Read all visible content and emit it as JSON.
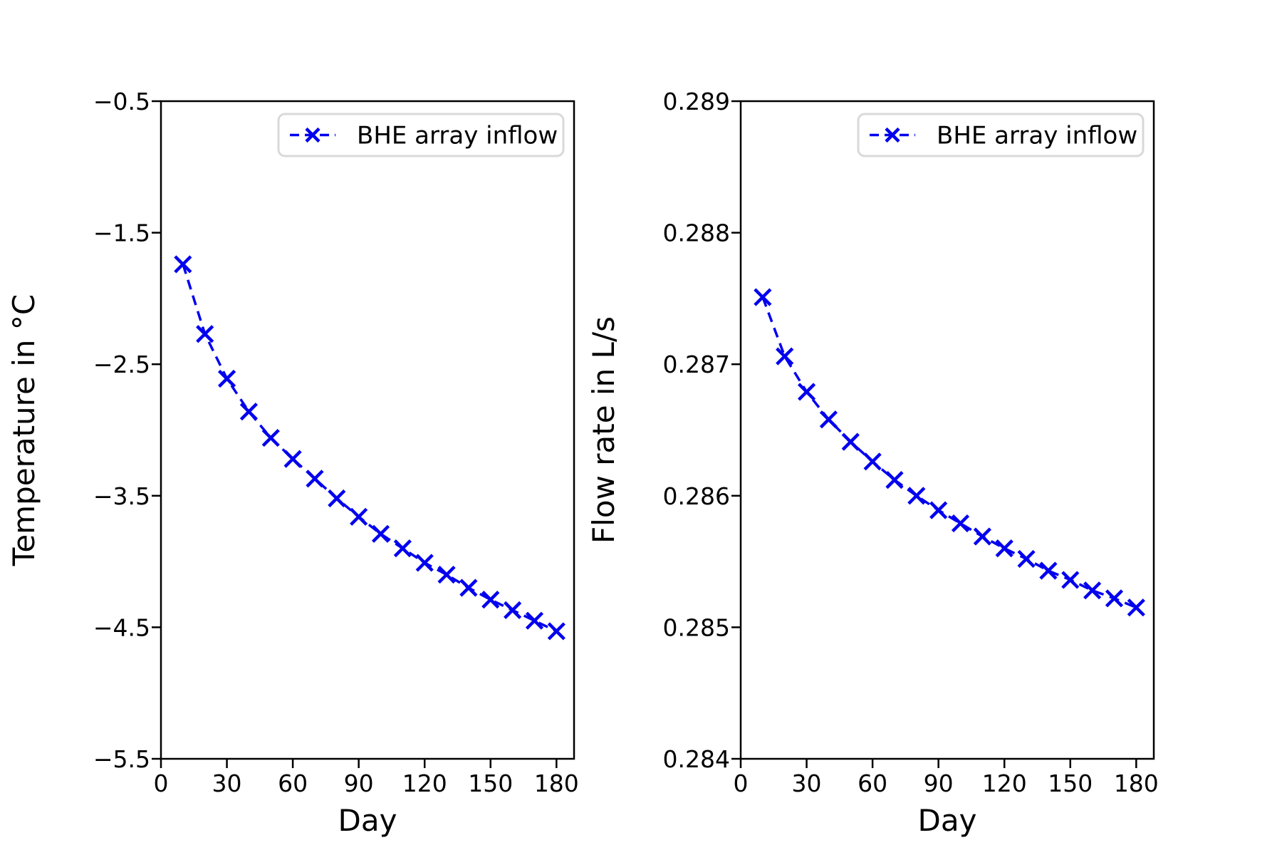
{
  "figure": {
    "background": "#ffffff",
    "accent_blue": "#0000ee",
    "legend_border": "#d9d9d9"
  },
  "chart_data": [
    {
      "type": "line",
      "title": "",
      "xlabel": "Day",
      "ylabel": "Temperature in °C",
      "grid": false,
      "legend": {
        "label": "BHE array inflow",
        "position": "upper right"
      },
      "xlim": [
        0,
        188
      ],
      "ylim": [
        -5.5,
        -0.5
      ],
      "xticks": {
        "values": [
          0,
          30,
          60,
          90,
          120,
          150,
          180
        ],
        "labels": [
          "0",
          "30",
          "60",
          "90",
          "120",
          "150",
          "180"
        ]
      },
      "yticks": {
        "values": [
          -0.5,
          -1.5,
          -2.5,
          -3.5,
          -4.5,
          -5.5
        ],
        "labels": [
          "−0.5",
          "−1.5",
          "−2.5",
          "−3.5",
          "−4.5",
          "−5.5"
        ]
      },
      "series": [
        {
          "name": "BHE array inflow",
          "color": "#0000ee",
          "linestyle": "dashed",
          "marker": "x",
          "x": [
            10,
            20,
            30,
            40,
            50,
            60,
            70,
            80,
            90,
            100,
            110,
            120,
            130,
            140,
            150,
            160,
            170,
            180
          ],
          "y": [
            -1.74,
            -2.27,
            -2.61,
            -2.86,
            -3.06,
            -3.22,
            -3.37,
            -3.52,
            -3.66,
            -3.79,
            -3.9,
            -4.01,
            -4.1,
            -4.2,
            -4.29,
            -4.37,
            -4.45,
            -4.53
          ]
        }
      ]
    },
    {
      "type": "line",
      "title": "",
      "xlabel": "Day",
      "ylabel": "Flow rate in L/s",
      "grid": false,
      "legend": {
        "label": "BHE array inflow",
        "position": "upper right"
      },
      "xlim": [
        0,
        188
      ],
      "ylim": [
        0.284,
        0.289
      ],
      "xticks": {
        "values": [
          0,
          30,
          60,
          90,
          120,
          150,
          180
        ],
        "labels": [
          "0",
          "30",
          "60",
          "90",
          "120",
          "150",
          "180"
        ]
      },
      "yticks": {
        "values": [
          0.289,
          0.288,
          0.287,
          0.286,
          0.285,
          0.284
        ],
        "labels": [
          "0.289",
          "0.288",
          "0.287",
          "0.286",
          "0.285",
          "0.284"
        ]
      },
      "series": [
        {
          "name": "BHE array inflow",
          "color": "#0000ee",
          "linestyle": "dashed",
          "marker": "x",
          "x": [
            10,
            20,
            30,
            40,
            50,
            60,
            70,
            80,
            90,
            100,
            110,
            120,
            130,
            140,
            150,
            160,
            170,
            180
          ],
          "y": [
            0.28751,
            0.28706,
            0.28679,
            0.28658,
            0.28641,
            0.28626,
            0.28612,
            0.286,
            0.28589,
            0.28579,
            0.28569,
            0.2856,
            0.28552,
            0.28543,
            0.28536,
            0.28528,
            0.28522,
            0.28515
          ]
        }
      ]
    }
  ]
}
